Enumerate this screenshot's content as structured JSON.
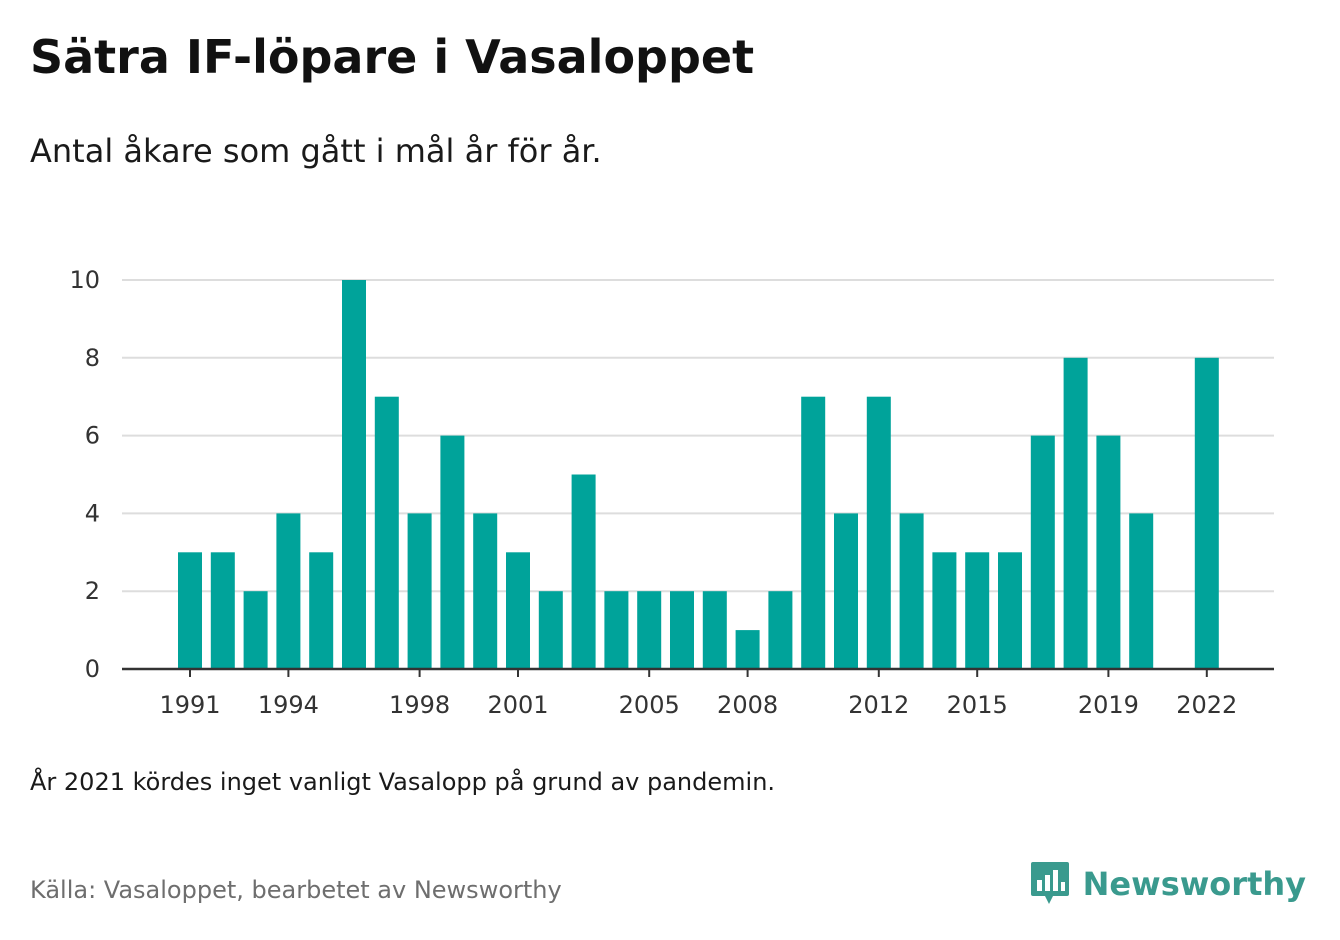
{
  "title": "Sätra IF-löpare i Vasaloppet",
  "subtitle": "Antal åkare som gått i mål år för år.",
  "note": "År 2021 kördes inget vanligt Vasalopp på grund av pandemin.",
  "source": "Källa: Vasaloppet, bearbetet av Newsworthy",
  "logo": {
    "text": "Newsworthy",
    "icon": "newsworthy-chart-bubble-icon"
  },
  "colors": {
    "bar": "#00a39a",
    "grid": "#dddddd",
    "axis": "#333333",
    "logo": "#3a9a8e"
  },
  "chart_data": {
    "type": "bar",
    "categories": [
      "1991",
      "1992",
      "1993",
      "1994",
      "1995",
      "1996",
      "1997",
      "1998",
      "1999",
      "2000",
      "2001",
      "2002",
      "2003",
      "2004",
      "2005",
      "2006",
      "2007",
      "2008",
      "2009",
      "2010",
      "2011",
      "2012",
      "2013",
      "2014",
      "2015",
      "2016",
      "2017",
      "2018",
      "2019",
      "2020",
      "2021",
      "2022"
    ],
    "values": [
      3,
      3,
      2,
      4,
      3,
      10,
      7,
      4,
      6,
      4,
      3,
      2,
      5,
      2,
      2,
      2,
      2,
      1,
      2,
      7,
      4,
      7,
      4,
      3,
      3,
      3,
      6,
      8,
      6,
      4,
      null,
      8
    ],
    "x_tick_labels": [
      "1991",
      "1994",
      "1998",
      "2001",
      "2005",
      "2008",
      "2012",
      "2015",
      "2019",
      "2022"
    ],
    "y_ticks": [
      0,
      2,
      4,
      6,
      8,
      10
    ],
    "ylim": [
      0,
      10
    ],
    "grid": true,
    "legend": "none",
    "xlabel": "",
    "ylabel": ""
  }
}
